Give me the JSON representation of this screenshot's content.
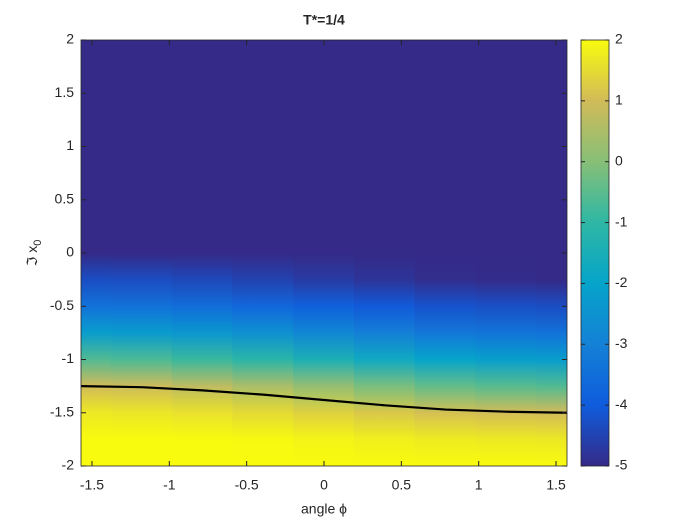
{
  "chart_data": {
    "type": "heatmap",
    "title": "T*=1/4",
    "xlabel": "angle ϕ",
    "ylabel": {
      "text": "ℑ x",
      "subscript": "0"
    },
    "x": [
      -1.5708,
      -1.1781,
      -0.7854,
      -0.3927,
      0,
      0.3927,
      0.7854,
      1.1781,
      1.5708
    ],
    "y": [
      2,
      1.75,
      1.5,
      1.25,
      1,
      0.75,
      0.5,
      0.25,
      0,
      -0.25,
      -0.5,
      -0.75,
      -1,
      -1.25,
      -1.5,
      -1.75,
      -2
    ],
    "z": [
      [
        -5,
        -5,
        -5,
        -5,
        -5,
        -5,
        -5,
        -5,
        -5
      ],
      [
        -5,
        -5,
        -5,
        -5,
        -5,
        -5,
        -5,
        -5,
        -5
      ],
      [
        -5,
        -5,
        -5,
        -5,
        -5,
        -5,
        -5,
        -5,
        -5
      ],
      [
        -5,
        -5,
        -5,
        -5,
        -5,
        -5,
        -5,
        -5,
        -5
      ],
      [
        -5,
        -5,
        -5,
        -5,
        -5,
        -5,
        -5,
        -5,
        -5
      ],
      [
        -5,
        -5,
        -5,
        -5,
        -5,
        -5,
        -5,
        -5,
        -5
      ],
      [
        -5,
        -5,
        -5,
        -5,
        -5,
        -5,
        -5,
        -5,
        -5
      ],
      [
        -5,
        -5,
        -5,
        -5,
        -5,
        -5,
        -5,
        -5,
        -5
      ],
      [
        -5,
        -5,
        -5,
        -5,
        -5,
        -5,
        -5,
        -5,
        -5
      ],
      [
        -4.3,
        -4.33,
        -4.41,
        -4.52,
        -4.66,
        -4.8,
        -4.92,
        -4.97,
        -5
      ],
      [
        -3.4,
        -3.44,
        -3.54,
        -3.69,
        -3.87,
        -4.05,
        -4.19,
        -4.26,
        -4.3
      ],
      [
        -2.2,
        -2.25,
        -2.39,
        -2.58,
        -2.82,
        -3.06,
        -3.26,
        -3.35,
        -3.4
      ],
      [
        -0.6,
        -0.66,
        -0.86,
        -1.11,
        -1.43,
        -1.75,
        -2.01,
        -2.14,
        -2.2
      ],
      [
        1,
        0.94,
        0.74,
        0.49,
        0.17,
        -0.15,
        -0.41,
        -0.54,
        -0.6
      ],
      [
        1.7,
        1.67,
        1.59,
        1.48,
        1.34,
        1.2,
        1.08,
        1.03,
        1
      ],
      [
        2.1,
        2.08,
        2.04,
        1.97,
        1.89,
        1.81,
        1.75,
        1.72,
        1.7
      ],
      [
        2.4,
        2.39,
        2.35,
        2.3,
        2.24,
        2.18,
        2.14,
        2.11,
        2.1
      ]
    ],
    "contour": {
      "color": "#000000",
      "values": [
        -1.25,
        -1.26,
        -1.29,
        -1.33,
        -1.38,
        -1.43,
        -1.47,
        -1.49,
        -1.5
      ]
    },
    "xlim": [
      -1.5708,
      1.5708
    ],
    "xticks": [
      -1.5,
      -1,
      -0.5,
      0,
      0.5,
      1,
      1.5
    ],
    "ylim": [
      -2,
      2
    ],
    "yticks": [
      -2,
      -1.5,
      -1,
      -0.5,
      0,
      0.5,
      1,
      1.5,
      2
    ],
    "clim": [
      -5,
      2
    ],
    "cticks": [
      -5,
      -4,
      -3,
      -2,
      -1,
      0,
      1,
      2
    ],
    "colormap": [
      "#352a87",
      "#0f5cdd",
      "#1481d6",
      "#06a4ca",
      "#2eb7a4",
      "#87bf77",
      "#d1bb59",
      "#f9fb0e"
    ]
  }
}
